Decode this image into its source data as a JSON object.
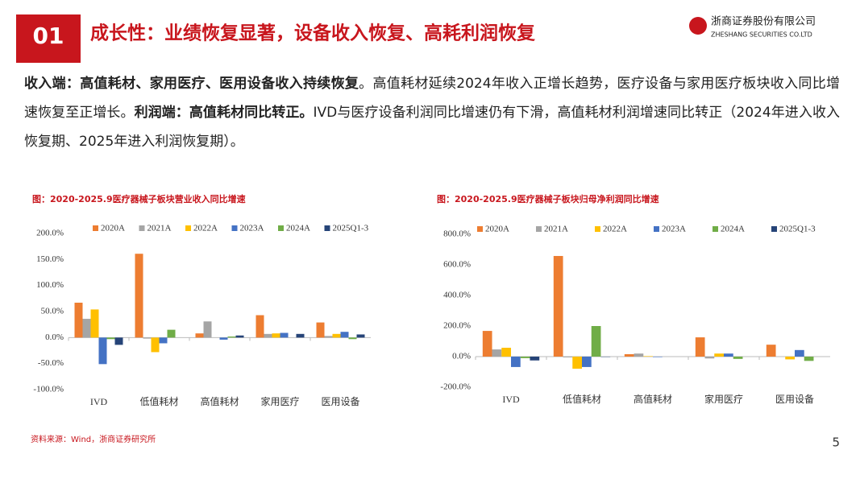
{
  "header": {
    "number": "01",
    "title": "成长性：业绩恢复显著，设备收入恢复、高耗利润恢复",
    "logo_cn": "浙商证券股份有限公司",
    "logo_en": "ZHESHANG SECURITIES CO.LTD"
  },
  "body": [
    {
      "text": "收入端：高值耗材、家用医疗、医用设备收入持续恢复",
      "bold": true
    },
    {
      "text": "。高值耗材延续2024年收入正增长趋势，医疗设备与家用医疗板块收入同比增速恢复至正增长。",
      "bold": false
    },
    {
      "text": "利润端：高值耗材同比转正。",
      "bold": true
    },
    {
      "text": "IVD与医疗设备利润同比增速仍有下滑，高值耗材利润增速同比转正（2024年进入收入恢复期、2025年进入利润恢复期）。",
      "bold": false
    }
  ],
  "chart_data": [
    {
      "type": "bar",
      "title": "图：2020-2025.9医疗器械子板块营业收入同比增速",
      "categories": [
        "IVD",
        "低值耗材",
        "高值耗材",
        "家用医疗",
        "医用设备"
      ],
      "series": [
        {
          "name": "2020A",
          "color": "#ED7D31",
          "values": [
            67,
            161,
            8,
            43,
            29
          ]
        },
        {
          "name": "2021A",
          "color": "#A5A5A5",
          "values": [
            36,
            -2,
            31,
            7,
            3
          ]
        },
        {
          "name": "2022A",
          "color": "#FFC000",
          "values": [
            54,
            -28,
            0,
            8,
            7
          ]
        },
        {
          "name": "2023A",
          "color": "#4472C4",
          "values": [
            -51,
            -11,
            -4,
            9,
            11
          ]
        },
        {
          "name": "2024A",
          "color": "#70AD47",
          "values": [
            -3,
            15,
            2,
            0,
            -3
          ]
        },
        {
          "name": "2025Q1-3",
          "color": "#264478",
          "values": [
            -14,
            0,
            4,
            7,
            6
          ]
        }
      ],
      "ylim": [
        -100,
        200
      ],
      "yticks": [
        {
          "value": -100,
          "label": "-100.0%"
        },
        {
          "value": -50,
          "label": "-50.0%"
        },
        {
          "value": 0,
          "label": "0.0%"
        },
        {
          "value": 50,
          "label": "50.0%"
        },
        {
          "value": 100,
          "label": "100.0%"
        },
        {
          "value": 150,
          "label": "150.0%"
        },
        {
          "value": 200,
          "label": "200.0%"
        }
      ],
      "legend": "top",
      "grid": false
    },
    {
      "type": "bar",
      "title": "图：2020-2025.9医疗器械子板块归母净利润同比增速",
      "categories": [
        "IVD",
        "低值耗材",
        "高值耗材",
        "家用医疗",
        "医用设备"
      ],
      "series": [
        {
          "name": "2020A",
          "color": "#ED7D31",
          "values": [
            168,
            658,
            16,
            126,
            78
          ]
        },
        {
          "name": "2021A",
          "color": "#A5A5A5",
          "values": [
            47,
            -5,
            20,
            -12,
            0
          ]
        },
        {
          "name": "2022A",
          "color": "#FFC000",
          "values": [
            58,
            -79,
            3,
            20,
            -18
          ]
        },
        {
          "name": "2023A",
          "color": "#4472C4",
          "values": [
            -68,
            -68,
            -3,
            20,
            43
          ]
        },
        {
          "name": "2024A",
          "color": "#70AD47",
          "values": [
            -10,
            200,
            0,
            -15,
            -28
          ]
        },
        {
          "name": "2025Q1-3",
          "color": "#264478",
          "values": [
            -25,
            -2,
            0,
            0,
            0
          ]
        }
      ],
      "ylim": [
        -200,
        800
      ],
      "yticks": [
        {
          "value": -200,
          "label": "-200.0%"
        },
        {
          "value": 0,
          "label": "0.0%"
        },
        {
          "value": 200,
          "label": "200.0%"
        },
        {
          "value": 400,
          "label": "400.0%"
        },
        {
          "value": 600,
          "label": "600.0%"
        },
        {
          "value": 800,
          "label": "800.0%"
        }
      ],
      "legend": "top",
      "grid": false
    }
  ],
  "footer": {
    "source": "资料来源：Wind，浙商证券研究所",
    "page": "5"
  }
}
